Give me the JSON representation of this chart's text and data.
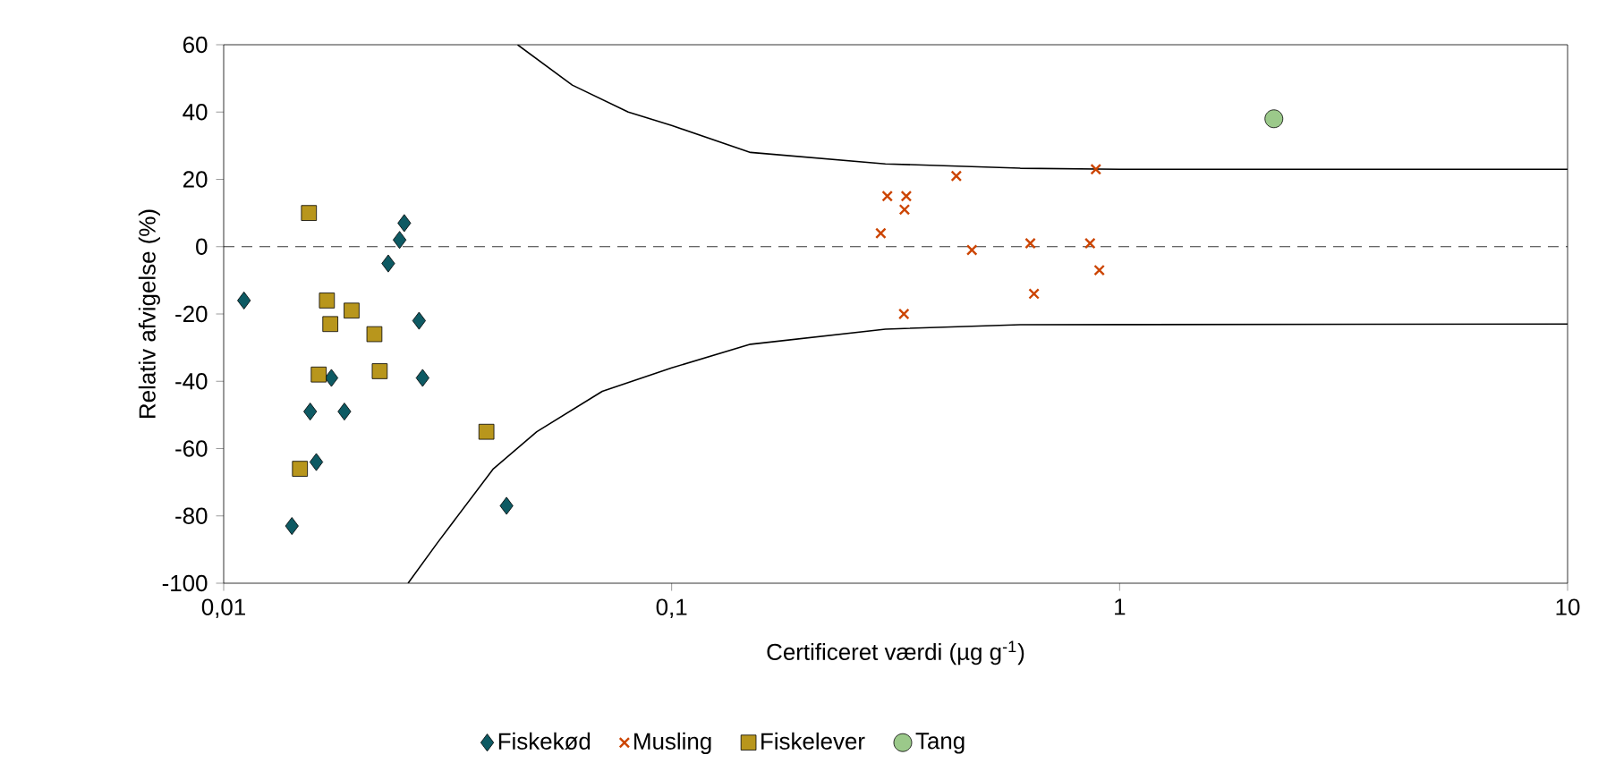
{
  "chart_data": {
    "type": "scatter",
    "xlabel": "Certificeret værdi (µg g$^{-1}$)",
    "ylabel": "Relativ afvigelse (%)",
    "log": "x",
    "xlim": [
      0.01,
      10
    ],
    "ylim": [
      -100,
      60
    ],
    "xticks": [
      {
        "value": 0.01,
        "label": "0,01"
      },
      {
        "value": 0.1,
        "label": "0,1"
      },
      1,
      10
    ],
    "yticks": [
      -100,
      -80,
      -60,
      -40,
      -20,
      0,
      20,
      40,
      60
    ],
    "grid": false,
    "legend": "bottom",
    "ref_lines": [
      {
        "axis": "y",
        "value": 0,
        "line_style": "dashed",
        "color": "#000000"
      }
    ],
    "series": [
      {
        "name": "Fiskekød",
        "color": "#0e5a63",
        "marker": "diamond",
        "x": [
          0.0111,
          0.0253,
          0.0247,
          0.0233,
          0.0273,
          0.0278,
          0.0174,
          0.0156,
          0.0186,
          0.0161,
          0.0142,
          0.0428
        ],
        "values": [
          -16,
          7,
          2,
          -5,
          -22,
          -39,
          -39,
          -49,
          -49,
          -64,
          -83,
          -77
        ]
      },
      {
        "name": "Musling",
        "color": "#cc4400",
        "marker": "cross",
        "x": [
          0.303,
          0.334,
          0.331,
          0.293,
          0.432,
          0.885,
          0.468,
          0.632,
          0.859,
          0.901,
          0.644,
          0.33
        ],
        "values": [
          15,
          15,
          11,
          4,
          21,
          23,
          -1,
          1,
          1,
          -7,
          -14,
          -20
        ]
      },
      {
        "name": "Fiskelever",
        "color": "#b8961c",
        "marker": "square",
        "x": [
          0.0155,
          0.017,
          0.0173,
          0.0193,
          0.0217,
          0.0163,
          0.0223,
          0.0148,
          0.0386
        ],
        "values": [
          10,
          -16,
          -23,
          -19,
          -26,
          -38,
          -37,
          -66,
          -55
        ]
      },
      {
        "name": "Tang",
        "color": "#9bc98a",
        "marker": "circle",
        "x": [
          2.21
        ],
        "values": [
          38
        ]
      },
      {
        "type": "line",
        "color": "#000000",
        "marker": "none",
        "line_style": "solid",
        "x": [
          0.0453,
          0.06,
          0.08,
          0.1,
          0.15,
          0.3,
          0.6,
          1,
          10
        ],
        "values": [
          60,
          48,
          40,
          36,
          28,
          24.6,
          23.3,
          23,
          23
        ]
      },
      {
        "type": "line",
        "color": "#000000",
        "marker": "none",
        "line_style": "solid",
        "x": [
          0.0258,
          0.03,
          0.04,
          0.05,
          0.07,
          0.1,
          0.15,
          0.3,
          0.6,
          10
        ],
        "values": [
          -100,
          -88,
          -66,
          -55,
          -43,
          -36,
          -29,
          -24.5,
          -23.2,
          -23
        ]
      }
    ]
  }
}
